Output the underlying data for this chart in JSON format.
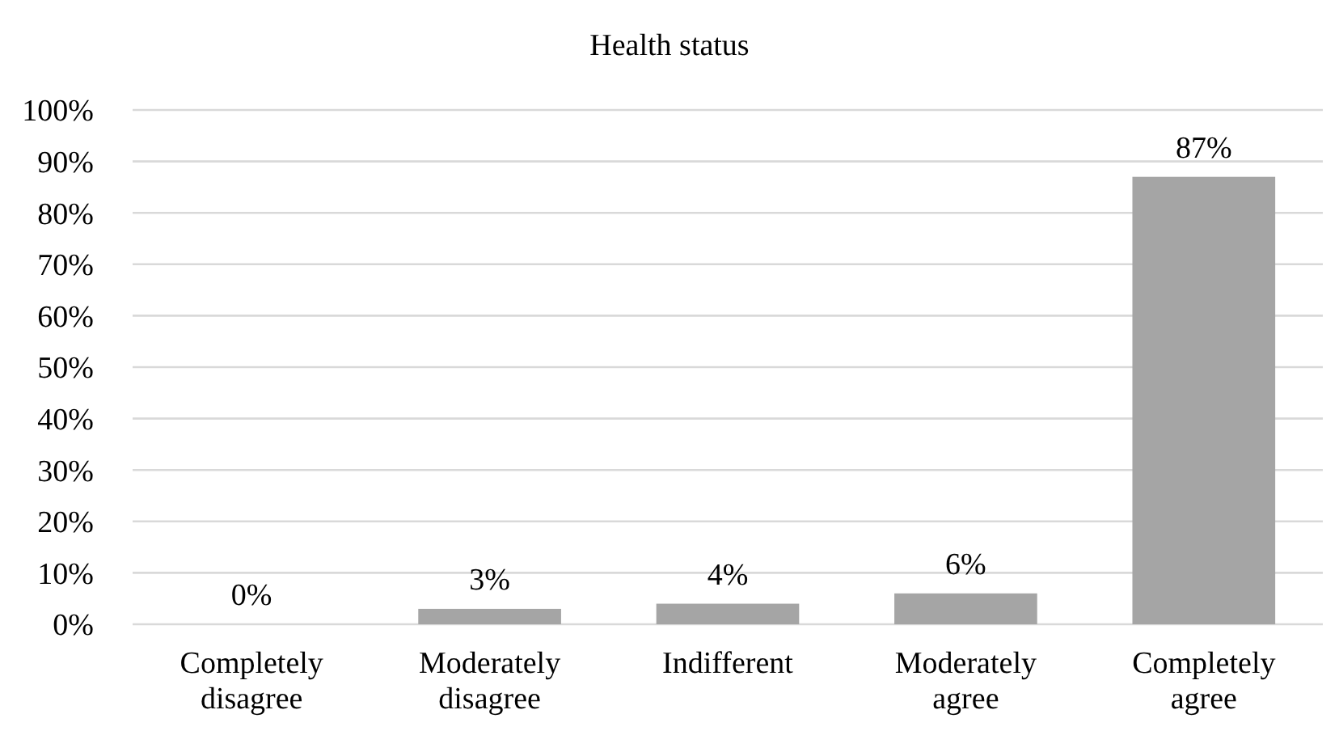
{
  "chart_data": {
    "type": "bar",
    "title": "Health status",
    "categories": [
      "Completely disagree",
      "Moderately disagree",
      "Indifferent",
      "Moderately agree",
      "Completely agree"
    ],
    "values": [
      0,
      3,
      4,
      6,
      87
    ],
    "color": "#a5a5a5",
    "ylim": [
      0,
      100
    ],
    "yticks": [
      {
        "value": 0,
        "label": "0%"
      },
      {
        "value": 10,
        "label": "10%"
      },
      {
        "value": 20,
        "label": "20%"
      },
      {
        "value": 30,
        "label": "30%"
      },
      {
        "value": 40,
        "label": "40%"
      },
      {
        "value": 50,
        "label": "50%"
      },
      {
        "value": 60,
        "label": "60%"
      },
      {
        "value": 70,
        "label": "70%"
      },
      {
        "value": 80,
        "label": "80%"
      },
      {
        "value": 90,
        "label": "90%"
      },
      {
        "value": 100,
        "label": "100%"
      }
    ],
    "value_labels": [
      "0%",
      "3%",
      "4%",
      "6%",
      "87%"
    ],
    "grid": "y"
  }
}
